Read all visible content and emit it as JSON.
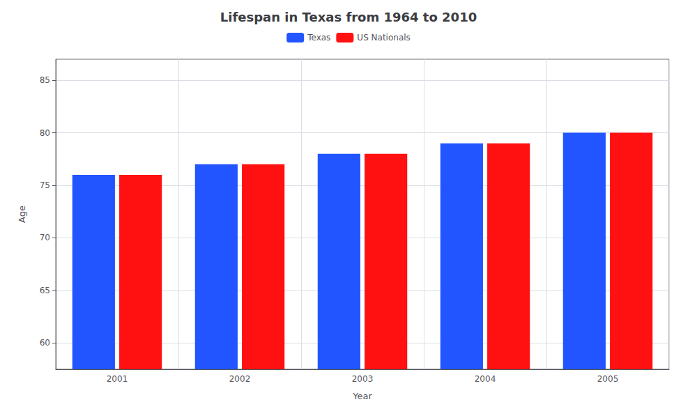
{
  "chart_data": {
    "type": "bar",
    "title": "Lifespan in Texas from 1964 to 2010",
    "x_label": "Year",
    "y_label": "Age",
    "categories": [
      "2001",
      "2002",
      "2003",
      "2004",
      "2005"
    ],
    "series": [
      {
        "name": "Texas",
        "color": "#2255ff",
        "values": [
          76,
          77,
          78,
          79,
          80
        ]
      },
      {
        "name": "US Nationals",
        "color": "#ff1111",
        "values": [
          76,
          77,
          78,
          79,
          80
        ]
      }
    ],
    "ylim": [
      57.5,
      87
    ],
    "yticks": [
      60,
      65,
      70,
      75,
      80,
      85
    ],
    "grid": true,
    "legend": "top"
  }
}
